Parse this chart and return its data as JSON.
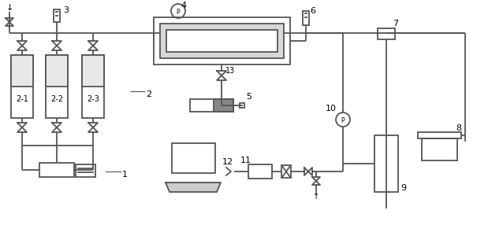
{
  "background": "#ffffff",
  "line_color": "#555555",
  "text_color": "#000000",
  "line_width": 1.3,
  "fig_width": 6.19,
  "fig_height": 3.0,
  "dpi": 100
}
